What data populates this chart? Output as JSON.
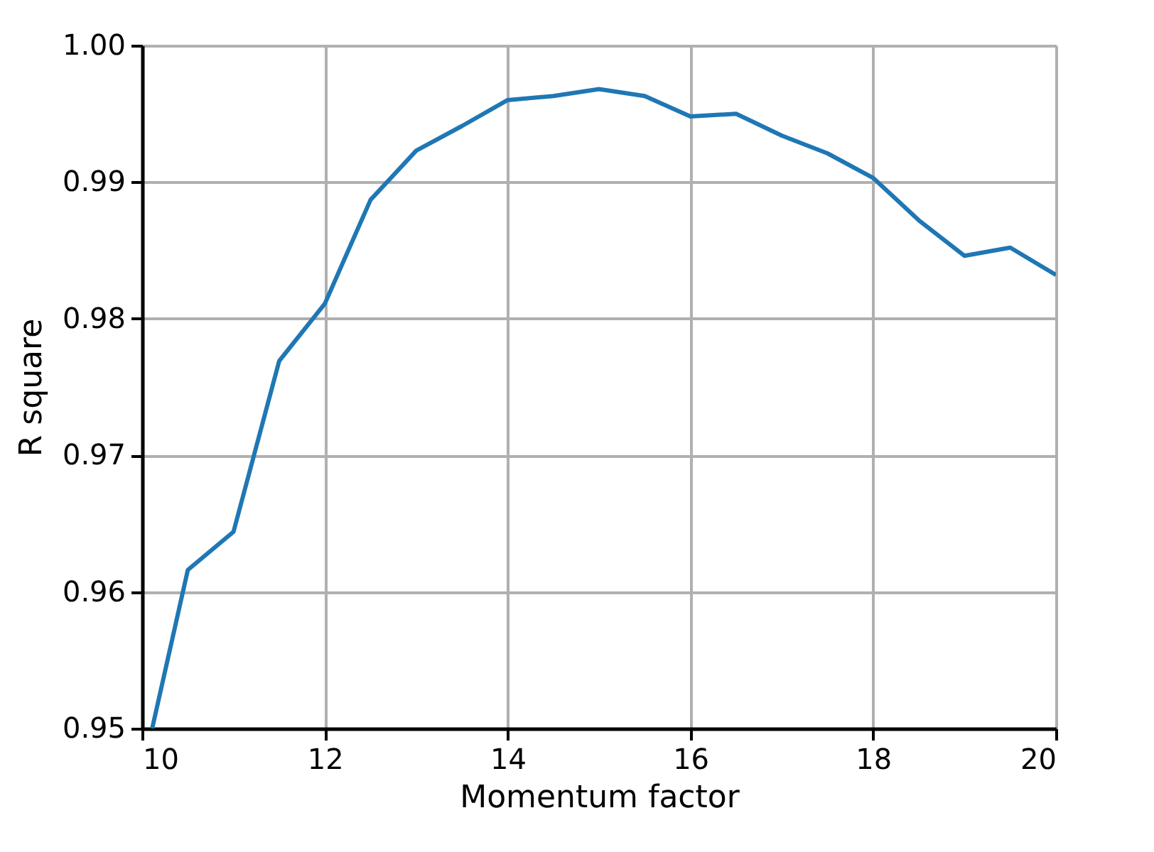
{
  "chart_data": {
    "type": "line",
    "xlabel": "Momentum factor",
    "ylabel": "R square",
    "x": [
      10.11,
      10.5,
      11,
      11.5,
      12,
      12.5,
      13,
      13.5,
      14,
      14.5,
      15,
      15.5,
      16,
      16.5,
      17,
      17.5,
      18,
      18.5,
      19,
      19.5,
      20
    ],
    "series": [
      {
        "color": "#1f77b4",
        "values": [
          0.95,
          0.9616,
          0.9644,
          0.9769,
          0.9811,
          0.9887,
          0.9923,
          0.9941,
          0.996,
          0.9963,
          0.9968,
          0.9963,
          0.9948,
          0.995,
          0.9934,
          0.9921,
          0.9903,
          0.9872,
          0.9846,
          0.9852,
          0.9832
        ]
      }
    ],
    "xlim": [
      10,
      20
    ],
    "xticks": [
      10,
      12,
      14,
      16,
      18,
      20
    ],
    "ylim": [
      0.95,
      1.0
    ],
    "yticks": [
      {
        "value": 0.95,
        "label": "0.95"
      },
      {
        "value": 0.96,
        "label": "0.96"
      },
      {
        "value": 0.97,
        "label": "0.97"
      },
      {
        "value": 0.98,
        "label": "0.98"
      },
      {
        "value": 0.99,
        "label": "0.99"
      },
      {
        "value": 1.0,
        "label": "1.00"
      }
    ],
    "grid": true,
    "marker": "none",
    "line_style": "solid"
  }
}
